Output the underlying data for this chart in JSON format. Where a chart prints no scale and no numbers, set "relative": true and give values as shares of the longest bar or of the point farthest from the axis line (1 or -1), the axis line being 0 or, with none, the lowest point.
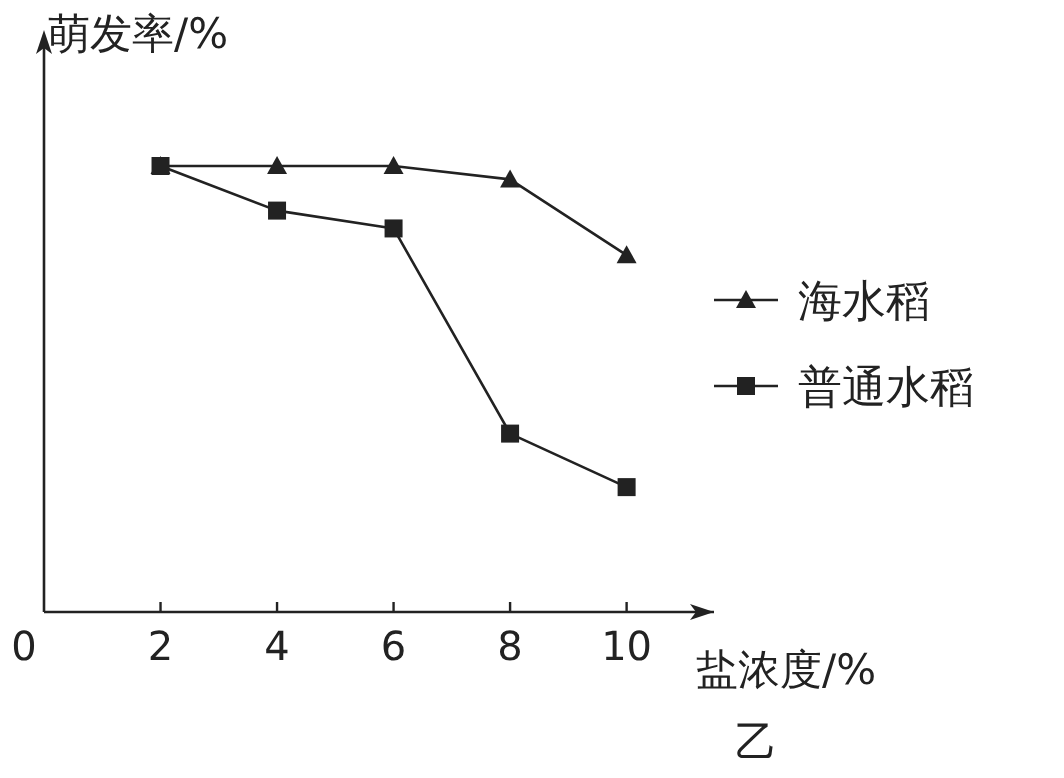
{
  "chart_data": {
    "type": "line",
    "ylabel": "萌发率/%",
    "xlabel": "盐浓度/%",
    "annotations": [
      "乙"
    ],
    "relative": true,
    "xlim": [
      0,
      11.5
    ],
    "xticks": [
      {
        "value": 0,
        "label": "0"
      },
      2,
      4,
      6,
      8,
      10
    ],
    "legend": "right",
    "grid": false,
    "series": [
      {
        "name": "海水稻",
        "color": "#222222",
        "marker": "triangle",
        "x": [
          2,
          4,
          6,
          8,
          10
        ],
        "values": [
          1,
          1,
          1,
          0.97,
          0.8
        ]
      },
      {
        "name": "普通水稻",
        "color": "#222222",
        "marker": "square",
        "x": [
          2,
          4,
          6,
          8,
          10
        ],
        "values": [
          1,
          0.9,
          0.86,
          0.4,
          0.28
        ]
      }
    ]
  }
}
